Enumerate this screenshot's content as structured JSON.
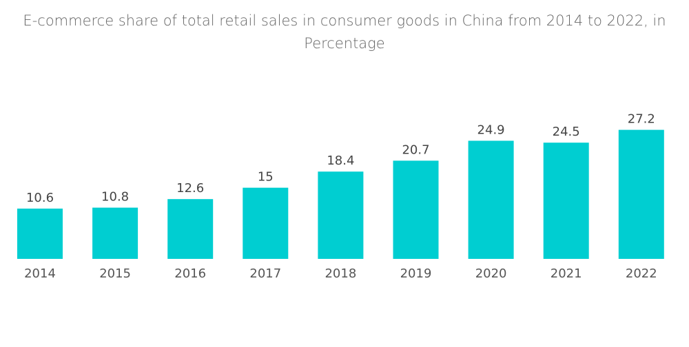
{
  "chart_data": {
    "type": "bar",
    "title": "E-commerce share of total retail sales in consumer goods in China from 2014 to 2022, in Percentage",
    "title_line1": "E-commerce share of total retail sales in consumer goods in China from 2014 to 2022, in",
    "title_line2": "Percentage",
    "categories": [
      "2014",
      "2015",
      "2016",
      "2017",
      "2018",
      "2019",
      "2020",
      "2021",
      "2022"
    ],
    "values": [
      10.6,
      10.8,
      12.6,
      15,
      18.4,
      20.7,
      24.9,
      24.5,
      27.2
    ],
    "xlabel": "",
    "ylabel": "",
    "ylim": [
      0,
      30
    ],
    "grid": false,
    "bar_color": "#00CED1"
  }
}
